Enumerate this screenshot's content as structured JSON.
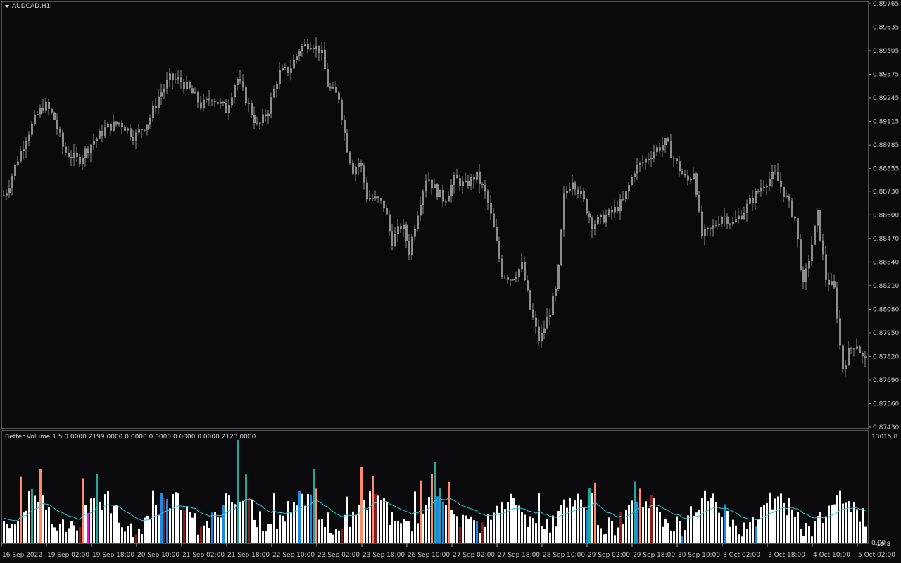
{
  "symbol": "AUDCAD,H1",
  "indicator_title": "Better Volume 1.5 0.0000 2199.0000 0.0000 0.0000 0.0000 0.0000 2123.0000",
  "volume_max_label": "13015.8",
  "volume_min_label": "0.00",
  "volume_min_label2": "-19.8",
  "colors": {
    "background": "#0a0a0d",
    "frame": "#9a9a9a",
    "candle": "#8c8c8c",
    "volume_normal": "#ffffff",
    "volume_climax_up": "#26a69a",
    "volume_climax_down": "#1e88e5",
    "volume_churn": "#ff8a65",
    "volume_low": "#8b1a1a",
    "volume_climax_churn": "#ff00ff",
    "average_line": "#26c6da"
  },
  "chart_data": [
    {
      "type": "candlestick",
      "title": "AUDCAD,H1",
      "price_ticks": [
        "0.89765",
        "0.89635",
        "0.89505",
        "0.89375",
        "0.89245",
        "0.89115",
        "0.88985",
        "0.88855",
        "0.88730",
        "0.88600",
        "0.88470",
        "0.88340",
        "0.88210",
        "0.88080",
        "0.87950",
        "0.87820",
        "0.87690",
        "0.87560",
        "0.87430"
      ],
      "ylim": [
        0.8743,
        0.89765
      ],
      "time_labels": [
        "16 Sep 2022",
        "19 Sep 02:00",
        "19 Sep 18:00",
        "20 Sep 10:00",
        "21 Sep 02:00",
        "21 Sep 18:00",
        "22 Sep 10:00",
        "23 Sep 02:00",
        "23 Sep 18:00",
        "26 Sep 10:00",
        "27 Sep 02:00",
        "27 Sep 18:00",
        "28 Sep 10:00",
        "29 Sep 02:00",
        "29 Sep 18:00",
        "30 Sep 10:00",
        "3 Oct 02:00",
        "3 Oct 18:00",
        "4 Oct 10:00",
        "5 Oct 02:00"
      ],
      "close_path": [
        [
          0,
          0.8868
        ],
        [
          10,
          0.8875
        ],
        [
          22,
          0.8889
        ],
        [
          35,
          0.8902
        ],
        [
          50,
          0.8914
        ],
        [
          62,
          0.8921
        ],
        [
          75,
          0.8914
        ],
        [
          90,
          0.8895
        ],
        [
          110,
          0.889
        ],
        [
          130,
          0.89
        ],
        [
          150,
          0.8908
        ],
        [
          170,
          0.8911
        ],
        [
          190,
          0.8903
        ],
        [
          210,
          0.8912
        ],
        [
          225,
          0.8926
        ],
        [
          240,
          0.8935
        ],
        [
          255,
          0.8934
        ],
        [
          270,
          0.8928
        ],
        [
          285,
          0.892
        ],
        [
          300,
          0.8925
        ],
        [
          320,
          0.8918
        ],
        [
          335,
          0.8936
        ],
        [
          350,
          0.8922
        ],
        [
          365,
          0.8908
        ],
        [
          380,
          0.8918
        ],
        [
          395,
          0.8938
        ],
        [
          410,
          0.894
        ],
        [
          425,
          0.8952
        ],
        [
          440,
          0.8955
        ],
        [
          455,
          0.895
        ],
        [
          465,
          0.893
        ],
        [
          480,
          0.8925
        ],
        [
          490,
          0.89
        ],
        [
          500,
          0.8885
        ],
        [
          510,
          0.889
        ],
        [
          520,
          0.887
        ],
        [
          535,
          0.8868
        ],
        [
          545,
          0.8865
        ],
        [
          555,
          0.8845
        ],
        [
          570,
          0.8855
        ],
        [
          580,
          0.884
        ],
        [
          592,
          0.8862
        ],
        [
          605,
          0.8882
        ],
        [
          615,
          0.8875
        ],
        [
          630,
          0.8868
        ],
        [
          645,
          0.888
        ],
        [
          660,
          0.8876
        ],
        [
          675,
          0.8882
        ],
        [
          690,
          0.887
        ],
        [
          700,
          0.8852
        ],
        [
          712,
          0.8828
        ],
        [
          725,
          0.8825
        ],
        [
          740,
          0.8832
        ],
        [
          752,
          0.8808
        ],
        [
          765,
          0.879
        ],
        [
          778,
          0.8805
        ],
        [
          790,
          0.882
        ],
        [
          800,
          0.887
        ],
        [
          812,
          0.888
        ],
        [
          825,
          0.887
        ],
        [
          840,
          0.8855
        ],
        [
          855,
          0.8858
        ],
        [
          870,
          0.8862
        ],
        [
          885,
          0.8868
        ],
        [
          900,
          0.8885
        ],
        [
          915,
          0.889
        ],
        [
          930,
          0.8896
        ],
        [
          945,
          0.89
        ],
        [
          960,
          0.8888
        ],
        [
          975,
          0.8878
        ],
        [
          985,
          0.8885
        ],
        [
          995,
          0.8848
        ],
        [
          1010,
          0.8852
        ],
        [
          1025,
          0.886
        ],
        [
          1040,
          0.8855
        ],
        [
          1055,
          0.8862
        ],
        [
          1070,
          0.887
        ],
        [
          1085,
          0.8878
        ],
        [
          1100,
          0.8882
        ],
        [
          1115,
          0.887
        ],
        [
          1128,
          0.8858
        ],
        [
          1140,
          0.882
        ],
        [
          1150,
          0.884
        ],
        [
          1160,
          0.886
        ],
        [
          1172,
          0.8825
        ],
        [
          1185,
          0.8818
        ],
        [
          1195,
          0.8775
        ],
        [
          1205,
          0.8785
        ],
        [
          1215,
          0.879
        ],
        [
          1225,
          0.878
        ],
        [
          1232,
          0.8778
        ]
      ]
    },
    {
      "type": "bar",
      "title": "Better Volume 1.5",
      "ylim": [
        -19.8,
        13015.8
      ],
      "average_line": true
    }
  ]
}
